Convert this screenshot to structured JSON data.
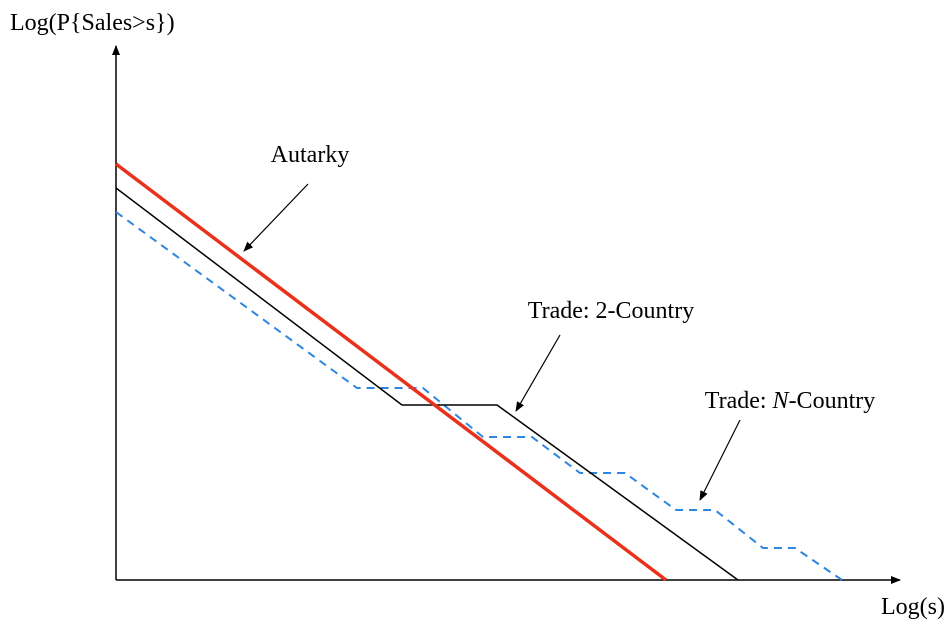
{
  "y_axis_label": "Log(P{Sales>s})",
  "x_axis_label": "Log(s)",
  "annotations": {
    "autarky": "Autarky",
    "two_country": "Trade: 2-Country",
    "n_country": {
      "prefix": "Trade:",
      "italic": "N",
      "suffix": "-Country"
    }
  }
}
